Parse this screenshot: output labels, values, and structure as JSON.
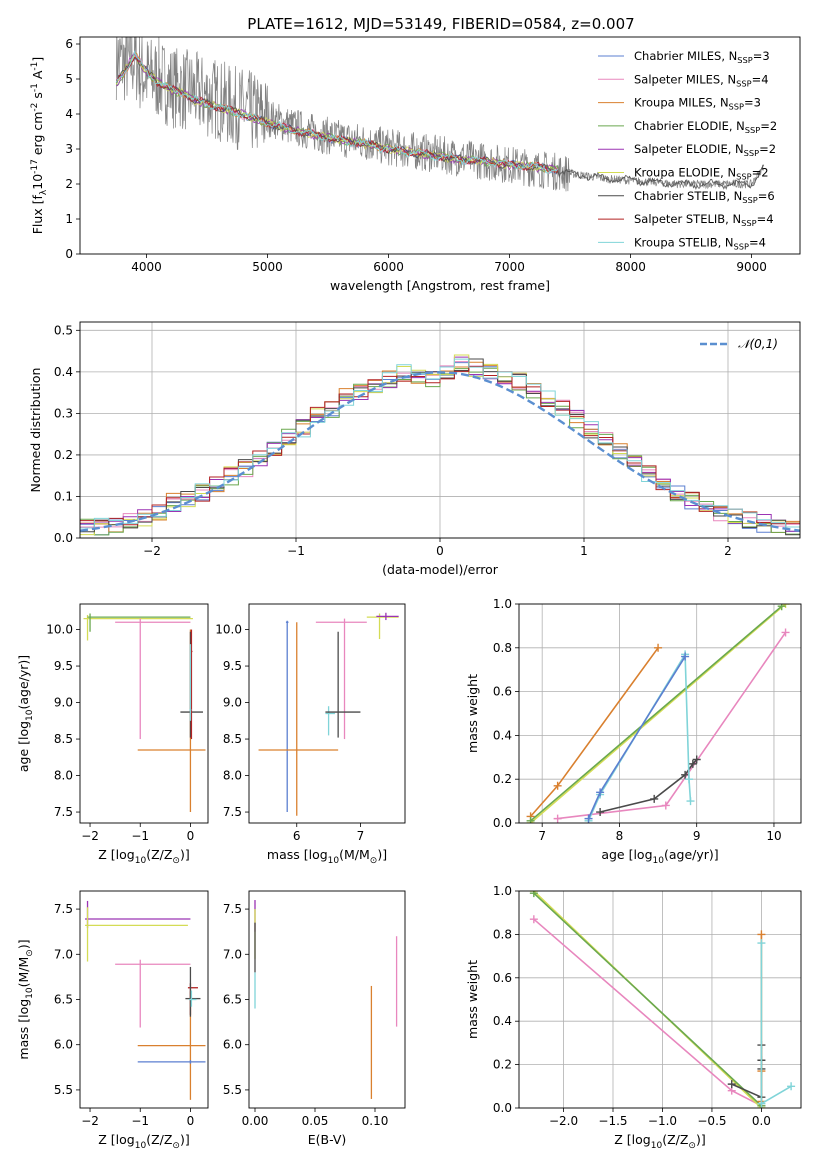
{
  "figure": {
    "title": "PLATE=1612, MJD=53149, FIBERID=0584, z=0.007"
  },
  "series_colors": [
    "#5b7fd0",
    "#e887be",
    "#d9802f",
    "#6aa84f",
    "#9b34b4",
    "#d4dc55",
    "#4a4a4a",
    "#b22222",
    "#80d4d8"
  ],
  "chart_data": [
    {
      "id": "spectrum",
      "type": "line",
      "xlabel": "wavelength [Angstrom, rest frame]",
      "ylabel": "Flux [f$_\\lambda$10$^{-17}$ erg cm$^{-2}$ s$^{-1}$ A$^{-1}$]",
      "ylabel_parts": [
        "Flux [f",
        "λ",
        "10",
        "−17",
        " erg cm",
        "−2",
        " s",
        "−1",
        " A",
        "−1",
        "]"
      ],
      "xlim": [
        3450,
        9400
      ],
      "ylim": [
        0,
        6.2
      ],
      "xticks": [
        4000,
        5000,
        6000,
        7000,
        8000,
        9000
      ],
      "yticks": [
        0,
        1,
        2,
        3,
        4,
        5,
        6
      ],
      "data_continuum": {
        "x": [
          3750,
          3800,
          3850,
          3900,
          3950,
          4000,
          4100,
          4200,
          4300,
          4400,
          4500,
          4600,
          4700,
          4800,
          4900,
          5000,
          5200,
          5400,
          5600,
          5800,
          6000,
          6200,
          6400,
          6600,
          6800,
          7000,
          7200,
          7400,
          7600,
          7800,
          8000,
          8200,
          8400,
          8600,
          8800,
          9000,
          9100
        ],
        "y": [
          5.6,
          5.5,
          5.4,
          5.6,
          5.2,
          5.1,
          5.0,
          4.8,
          4.7,
          4.6,
          4.5,
          4.4,
          4.2,
          4.15,
          4.0,
          3.9,
          3.65,
          3.45,
          3.3,
          3.2,
          3.05,
          2.95,
          2.85,
          2.75,
          2.65,
          2.55,
          2.45,
          2.35,
          2.25,
          2.15,
          2.1,
          2.05,
          2.0,
          2.0,
          2.0,
          2.0,
          2.5
        ]
      },
      "model_continuum": {
        "x": [
          3750,
          3800,
          3900,
          4000,
          4100,
          4200,
          4300,
          4400,
          4500,
          4700,
          4900,
          5000,
          5200,
          5400,
          5600,
          5800,
          6000,
          6200,
          6400,
          6600,
          6800,
          7000,
          7200,
          7400
        ],
        "y": [
          4.9,
          5.1,
          5.7,
          5.2,
          4.9,
          4.7,
          4.6,
          4.4,
          4.3,
          4.1,
          3.85,
          3.75,
          3.55,
          3.4,
          3.25,
          3.15,
          3.0,
          2.9,
          2.8,
          2.7,
          2.65,
          2.55,
          2.5,
          2.4
        ]
      },
      "legend": [
        {
          "label": "Chabrier MILES, N",
          "sub": "SSP",
          "suffix": "=3"
        },
        {
          "label": "Salpeter MILES, N",
          "sub": "SSP",
          "suffix": "=4"
        },
        {
          "label": "Kroupa MILES, N",
          "sub": "SSP",
          "suffix": "=3"
        },
        {
          "label": "Chabrier ELODIE, N",
          "sub": "SSP",
          "suffix": "=2"
        },
        {
          "label": "Salpeter ELODIE, N",
          "sub": "SSP",
          "suffix": "=2"
        },
        {
          "label": "Kroupa ELODIE, N",
          "sub": "SSP",
          "suffix": "=2"
        },
        {
          "label": "Chabrier STELIB, N",
          "sub": "SSP",
          "suffix": "=6"
        },
        {
          "label": "Salpeter STELIB, N",
          "sub": "SSP",
          "suffix": "=4"
        },
        {
          "label": "Kroupa STELIB, N",
          "sub": "SSP",
          "suffix": "=4"
        }
      ]
    },
    {
      "id": "residuals",
      "type": "line",
      "xlabel": "(data-model)/error",
      "ylabel": "Normed distribution",
      "xlim": [
        -2.5,
        2.5
      ],
      "ylim": [
        0,
        0.52
      ],
      "xticks": [
        -2,
        -1,
        0,
        1,
        2
      ],
      "yticks": [
        0.0,
        0.1,
        0.2,
        0.3,
        0.4,
        0.5
      ],
      "grid": true,
      "legend": "𝒩(0,1)",
      "histogram_bins": [
        -2.5,
        -2.4,
        -2.3,
        -2.2,
        -2.1,
        -2.0,
        -1.9,
        -1.8,
        -1.7,
        -1.6,
        -1.5,
        -1.4,
        -1.3,
        -1.2,
        -1.1,
        -1.0,
        -0.9,
        -0.8,
        -0.7,
        -0.6,
        -0.5,
        -0.4,
        -0.3,
        -0.2,
        -0.1,
        0.0,
        0.1,
        0.2,
        0.3,
        0.4,
        0.5,
        0.6,
        0.7,
        0.8,
        0.9,
        1.0,
        1.1,
        1.2,
        1.3,
        1.4,
        1.5,
        1.6,
        1.7,
        1.8,
        1.9,
        2.0,
        2.1,
        2.2,
        2.3,
        2.4,
        2.5
      ],
      "histogram_base": [
        0.025,
        0.03,
        0.035,
        0.045,
        0.05,
        0.06,
        0.085,
        0.095,
        0.11,
        0.125,
        0.15,
        0.17,
        0.195,
        0.22,
        0.245,
        0.265,
        0.295,
        0.31,
        0.34,
        0.35,
        0.37,
        0.38,
        0.395,
        0.39,
        0.385,
        0.4,
        0.42,
        0.41,
        0.4,
        0.38,
        0.375,
        0.35,
        0.335,
        0.31,
        0.285,
        0.26,
        0.235,
        0.205,
        0.18,
        0.155,
        0.13,
        0.11,
        0.09,
        0.075,
        0.06,
        0.05,
        0.045,
        0.035,
        0.03,
        0.025
      ]
    },
    {
      "id": "age-vs-Z",
      "type": "scatter",
      "xlabel": "Z [log$_{10}$(Z/Z$_\\odot$)]",
      "ylabel": "age  [log$_{10}$(age/yr)]",
      "xlim": [
        -2.2,
        0.35
      ],
      "ylim": [
        7.35,
        10.35
      ],
      "xticks": [
        -2,
        -1,
        0
      ],
      "yticks": [
        7.5,
        8.0,
        8.5,
        9.0,
        9.5,
        10.0
      ],
      "points": [
        {
          "s": 5,
          "x": -2.05,
          "y": 10.15,
          "xl": 0.08,
          "xh": 2.1,
          "yl": 0.3,
          "yh": 0.05
        },
        {
          "s": 3,
          "x": -2.0,
          "y": 10.17,
          "xl": 0.05,
          "xh": 2.0,
          "yl": 0.2,
          "yh": 0.05
        },
        {
          "s": 1,
          "x": -1.0,
          "y": 10.1,
          "xl": 0.5,
          "xh": 1.0,
          "yl": 1.6,
          "yh": 0.05
        },
        {
          "s": 2,
          "x": 0.0,
          "y": 8.35,
          "xl": 1.05,
          "xh": 0.3,
          "yl": 0.85,
          "yh": 1.65
        },
        {
          "s": 6,
          "x": 0.0,
          "y": 8.87,
          "xl": 0.2,
          "xh": 0.25,
          "yl": 0.35,
          "yh": 1.1
        },
        {
          "s": 7,
          "x": 0.02,
          "y": 9.7,
          "xl": 0.02,
          "xh": 0.02,
          "yl": 1.2,
          "yh": 0.3
        },
        {
          "s": 8,
          "x": 0.0,
          "y": 8.9,
          "xl": 0.02,
          "xh": 0.02,
          "yl": 0.15,
          "yh": 0.9
        }
      ]
    },
    {
      "id": "age-vs-mass",
      "type": "scatter",
      "xlabel": "mass [log$_{10}$(M/M$_\\odot$)]",
      "ylabel": "",
      "xlim": [
        5.25,
        7.7
      ],
      "ylim": [
        7.35,
        10.35
      ],
      "xticks": [
        6,
        7
      ],
      "yticks": [
        7.5,
        8.0,
        8.5,
        9.0,
        9.5,
        10.0
      ],
      "points": [
        {
          "s": 0,
          "x": 5.85,
          "y": 10.1,
          "xl": 0.02,
          "xh": 0.02,
          "yl": 2.6,
          "yh": 0.02
        },
        {
          "s": 2,
          "x": 6.0,
          "y": 8.35,
          "xl": 0.6,
          "xh": 0.65,
          "yl": 0.9,
          "yh": 1.75
        },
        {
          "s": 1,
          "x": 6.75,
          "y": 10.1,
          "xl": 0.45,
          "xh": 0.35,
          "yl": 1.6,
          "yh": 0.05
        },
        {
          "s": 8,
          "x": 6.5,
          "y": 8.85,
          "xl": 0.05,
          "xh": 0.1,
          "yl": 0.3,
          "yh": 0.1
        },
        {
          "s": 6,
          "x": 6.65,
          "y": 8.87,
          "xl": 0.2,
          "xh": 0.35,
          "yl": 0.35,
          "yh": 1.1
        },
        {
          "s": 5,
          "x": 7.3,
          "y": 10.17,
          "xl": 0.2,
          "xh": 0.3,
          "yl": 0.3,
          "yh": 0.05
        },
        {
          "s": 4,
          "x": 7.4,
          "y": 10.18,
          "xl": 0.15,
          "xh": 0.2,
          "yl": 0.05,
          "yh": 0.05
        }
      ]
    },
    {
      "id": "massweight-vs-age",
      "type": "line",
      "xlabel": "age  [log$_{10}$(age/yr)]",
      "ylabel": "mass weight",
      "xlim": [
        6.7,
        10.35
      ],
      "ylim": [
        0,
        1
      ],
      "xticks": [
        7,
        8,
        9,
        10
      ],
      "yticks": [
        0.0,
        0.2,
        0.4,
        0.6,
        0.8,
        1.0
      ],
      "grid": true,
      "series": [
        {
          "s": 2,
          "x": [
            6.85,
            7.2,
            8.5
          ],
          "y": [
            0.03,
            0.17,
            0.8
          ]
        },
        {
          "s": 5,
          "x": [
            6.85,
            10.15
          ],
          "y": [
            0.0,
            1.0
          ]
        },
        {
          "s": 3,
          "x": [
            6.85,
            10.1
          ],
          "y": [
            0.01,
            0.99
          ]
        },
        {
          "s": 1,
          "x": [
            7.2,
            8.6,
            10.15
          ],
          "y": [
            0.02,
            0.08,
            0.87
          ]
        },
        {
          "s": 6,
          "x": [
            7.75,
            8.45,
            8.85,
            8.95,
            9.0
          ],
          "y": [
            0.05,
            0.11,
            0.22,
            0.27,
            0.29
          ]
        },
        {
          "s": 8,
          "x": [
            7.6,
            7.75,
            8.85,
            8.9,
            8.92
          ],
          "y": [
            0.01,
            0.13,
            0.77,
            0.2,
            0.1
          ]
        },
        {
          "s": 0,
          "x": [
            7.6,
            7.75,
            8.85
          ],
          "y": [
            0.02,
            0.14,
            0.76
          ]
        }
      ]
    },
    {
      "id": "mass-vs-Z",
      "type": "scatter",
      "xlabel": "Z [log$_{10}$(Z/Z$_\\odot$)]",
      "ylabel": "mass [log$_{10}$(M/M$_\\odot$)]",
      "xlim": [
        -2.2,
        0.35
      ],
      "ylim": [
        5.3,
        7.7
      ],
      "xticks": [
        -2,
        -1,
        0
      ],
      "yticks": [
        5.5,
        6.0,
        6.5,
        7.0,
        7.5
      ],
      "points": [
        {
          "s": 4,
          "x": -2.05,
          "y": 7.39,
          "xl": 0.05,
          "xh": 2.05,
          "yl": 0.1,
          "yh": 0.2
        },
        {
          "s": 5,
          "x": -2.05,
          "y": 7.32,
          "xl": 0.05,
          "xh": 2.0,
          "yl": 0.4,
          "yh": 0.2
        },
        {
          "s": 1,
          "x": -1.0,
          "y": 6.89,
          "xl": 0.5,
          "xh": 1.0,
          "yl": 0.7,
          "yh": 0.05
        },
        {
          "s": 2,
          "x": 0.0,
          "y": 5.99,
          "xl": 1.05,
          "xh": 0.3,
          "yl": 0.6,
          "yh": 0.6
        },
        {
          "s": 0,
          "x": 0.0,
          "y": 5.81,
          "xl": 1.05,
          "xh": 0.3,
          "yl": 0.02,
          "yh": 0.02
        },
        {
          "s": 7,
          "x": 0.0,
          "y": 6.63,
          "xl": 0.05,
          "xh": 0.15,
          "yl": 0.3,
          "yh": 0.05
        },
        {
          "s": 6,
          "x": 0.0,
          "y": 6.51,
          "xl": 0.1,
          "xh": 0.2,
          "yl": 0.2,
          "yh": 0.35
        },
        {
          "s": 8,
          "x": 0.02,
          "y": 6.5,
          "xl": 0.05,
          "xh": 0.1,
          "yl": 0.08,
          "yh": 0.1
        }
      ]
    },
    {
      "id": "mass-vs-ebv",
      "type": "scatter",
      "xlabel": "E(B-V)",
      "ylabel": "",
      "xlim": [
        -0.005,
        0.125
      ],
      "ylim": [
        5.3,
        7.7
      ],
      "xticks": [
        0.0,
        0.05,
        0.1
      ],
      "xtick_labels": [
        "0.00",
        "0.05",
        "0.10"
      ],
      "yticks": [
        5.5,
        6.0,
        6.5,
        7.0,
        7.5
      ],
      "points": [
        {
          "s": 4,
          "x": 0.0,
          "y": 7.4,
          "xl": 0.0,
          "xh": 0.0,
          "yl": 0.15,
          "yh": 0.2
        },
        {
          "s": 5,
          "x": 0.0,
          "y": 7.3,
          "xl": 0.0,
          "xh": 0.0,
          "yl": 0.35,
          "yh": 0.2
        },
        {
          "s": 6,
          "x": 0.0,
          "y": 7.1,
          "xl": 0.0,
          "xh": 0.0,
          "yl": 0.3,
          "yh": 0.25
        },
        {
          "s": 8,
          "x": 0.0,
          "y": 6.6,
          "xl": 0.0,
          "xh": 0.0,
          "yl": 0.2,
          "yh": 0.2
        },
        {
          "s": 2,
          "x": 0.097,
          "y": 6.0,
          "xl": 0.0,
          "xh": 0.0,
          "yl": 0.6,
          "yh": 0.65
        },
        {
          "s": 1,
          "x": 0.118,
          "y": 6.7,
          "xl": 0.0,
          "xh": 0.0,
          "yl": 0.5,
          "yh": 0.5
        }
      ]
    },
    {
      "id": "massweight-vs-Z",
      "type": "line",
      "xlabel": "Z [log$_{10}$(Z/Z$_\\odot$)]",
      "ylabel": "mass weight",
      "xlim": [
        -2.45,
        0.4
      ],
      "ylim": [
        0,
        1
      ],
      "xticks": [
        -2.0,
        -1.5,
        -1.0,
        -0.5,
        0.0
      ],
      "xtick_labels": [
        "−2.0",
        "−1.5",
        "−1.0",
        "−0.5",
        "0.0"
      ],
      "yticks": [
        0.0,
        0.2,
        0.4,
        0.6,
        0.8,
        1.0
      ],
      "grid": true,
      "series": [
        {
          "s": 1,
          "x": [
            -2.3,
            -0.3,
            0.0
          ],
          "y": [
            0.87,
            0.08,
            0.01
          ]
        },
        {
          "s": 5,
          "x": [
            -2.3,
            0.0
          ],
          "y": [
            1.0,
            0.0
          ]
        },
        {
          "s": 3,
          "x": [
            -2.3,
            0.0
          ],
          "y": [
            0.99,
            0.01
          ]
        },
        {
          "s": 6,
          "x": [
            -0.3,
            0.0,
            0.0,
            0.0,
            0.0
          ],
          "y": [
            0.11,
            0.05,
            0.18,
            0.29,
            0.22
          ]
        },
        {
          "s": 2,
          "x": [
            0.0,
            0.0,
            0.0
          ],
          "y": [
            0.03,
            0.17,
            0.8
          ]
        },
        {
          "s": 8,
          "x": [
            0.0,
            0.0,
            0.3
          ],
          "y": [
            0.76,
            0.02,
            0.1
          ]
        }
      ]
    }
  ]
}
